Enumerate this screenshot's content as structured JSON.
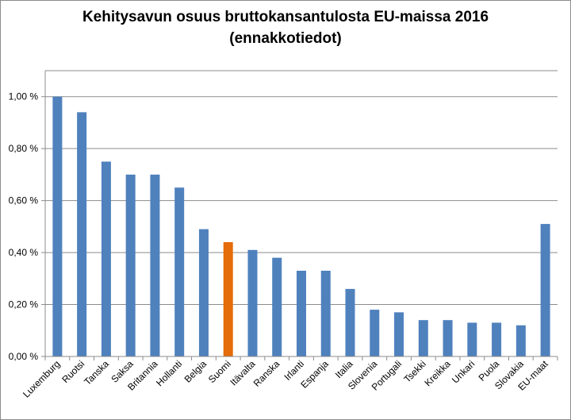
{
  "chart_data": {
    "type": "bar",
    "title_line1": "Kehitysavun osuus bruttokansantulosta EU-maissa 2016",
    "title_line2": "(ennakkotiedot)",
    "xlabel": "",
    "ylabel": "",
    "ylim": [
      0,
      1.1
    ],
    "yticks": [
      0,
      0.2,
      0.4,
      0.6,
      0.8,
      1.0
    ],
    "ytick_labels": [
      "0,00 %",
      "0,20 %",
      "0,40 %",
      "0,60 %",
      "0,80 %",
      "1,00 %"
    ],
    "grid": true,
    "legend": "none",
    "categories": [
      "Luxemburg",
      "Ruotsi",
      "Tanska",
      "Saksa",
      "Britannia",
      "Hollanti",
      "Belgia",
      "Suomi",
      "Itävalta",
      "Ranska",
      "Irlanti",
      "Espanja",
      "Italia",
      "Slovenia",
      "Portugali",
      "Tsekki",
      "Kreikka",
      "Unkari",
      "Puola",
      "Slovakia",
      "EU-maat"
    ],
    "values": [
      1.0,
      0.94,
      0.75,
      0.7,
      0.7,
      0.65,
      0.49,
      0.44,
      0.41,
      0.38,
      0.33,
      0.33,
      0.26,
      0.18,
      0.17,
      0.14,
      0.14,
      0.13,
      0.13,
      0.12,
      0.51
    ],
    "colors": {
      "default_bar": "#4f81bd",
      "highlight_bar": "#e46c0a",
      "gridline": "#8c8c8c",
      "axis": "#8c8c8c"
    },
    "highlight_category": "Suomi"
  }
}
